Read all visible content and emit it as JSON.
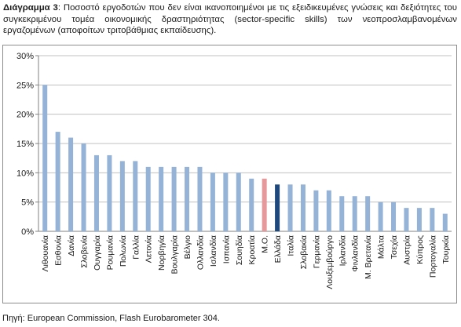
{
  "caption": {
    "label": "Διάγραμμα 3",
    "text": ": Ποσοστό εργοδοτών που δεν είναι ικανοποιημένοι με τις εξειδικευμένες γνώσεις και δεξιότητες του συγκεκριμένου τομέα οικονομικής δραστηριότητας (sector-specific skills) των νεοπροσλαμβανομένων εργαζομένων (αποφοίτων τριτοβάθμιας εκπαίδευσης)."
  },
  "source": "Πηγή: European Commission, Flash Eurobarometer 304.",
  "colors": {
    "default": "#95b3d7",
    "average": "#e6999a",
    "highlight": "#1f497d",
    "grid": "#c0c0c0",
    "axis": "#808080"
  },
  "chart_data": {
    "type": "bar",
    "categories": [
      "Λιθουανία",
      "Εσθονία",
      "Δανία",
      "Σλοβενία",
      "Ουγγαρία",
      "Ρουμανία",
      "Πολωνία",
      "Γαλλία",
      "Λετονία",
      "Νορβηγία",
      "Βουλγαρία",
      "Βέλγιο",
      "Ολλανδία",
      "Ισλανδία",
      "Ισπανία",
      "Σουηδία",
      "Κροατία",
      "Μ.Ο.",
      "Ελλάδα",
      "Ιταλία",
      "Σλοβακία",
      "Γερμανία",
      "Λουξεμβούργο",
      "Ιρλανδία",
      "Φινλανδία",
      "Μ. Βρετανία",
      "Μάλτα",
      "Τσεχία",
      "Αυστρία",
      "Κύπρος",
      "Πορτογαλία",
      "Τουρκία"
    ],
    "values": [
      25,
      17,
      16,
      15,
      13,
      13,
      12,
      12,
      11,
      11,
      11,
      11,
      11,
      10,
      10,
      10,
      9,
      9,
      8,
      8,
      8,
      7,
      7,
      6,
      6,
      6,
      5,
      5,
      4,
      4,
      4,
      3
    ],
    "highlight": {
      "Μ.Ο.": "average",
      "Ελλάδα": "highlight"
    },
    "yticks": [
      "0%",
      "5%",
      "10%",
      "15%",
      "20%",
      "25%",
      "30%"
    ],
    "ylim": [
      0,
      30
    ],
    "grid": true
  }
}
